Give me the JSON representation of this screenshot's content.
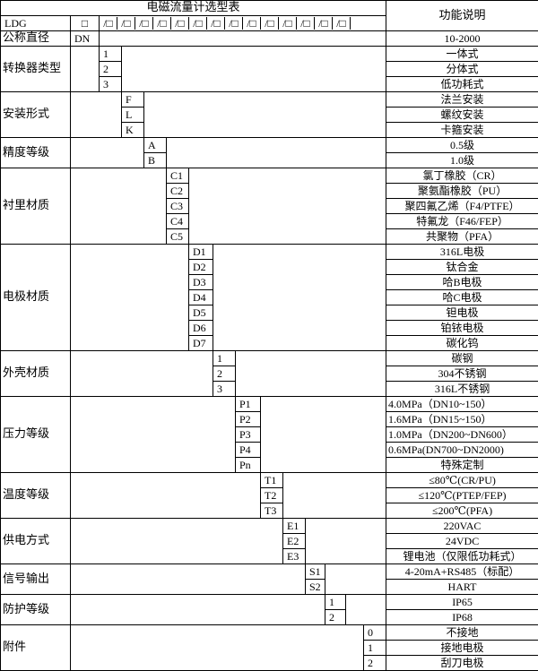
{
  "header": {
    "title": "电磁流量计选型表",
    "desc_title": "功能说明",
    "model": "LDG",
    "first_box": "□",
    "boxes": [
      "/□",
      "/□",
      "/□",
      "/□",
      "/□",
      "/□",
      "/□",
      "/□",
      "/□",
      "/□",
      "/□",
      "/□",
      "/□",
      "/□"
    ]
  },
  "nominal": {
    "label": "公称直径",
    "code": "DN",
    "desc": "10-2000"
  },
  "groups": [
    {
      "label": "转换器类型",
      "col": 2,
      "options": [
        {
          "code": "1",
          "desc": "一体式"
        },
        {
          "code": "2",
          "desc": "分体式"
        },
        {
          "code": "3",
          "desc": "低功耗式"
        }
      ]
    },
    {
      "label": "安装形式",
      "col": 3,
      "options": [
        {
          "code": "F",
          "desc": "法兰安装"
        },
        {
          "code": "L",
          "desc": "螺纹安装"
        },
        {
          "code": "K",
          "desc": "卡箍安装"
        }
      ]
    },
    {
      "label": "精度等级",
      "col": 4,
      "options": [
        {
          "code": "A",
          "desc": "0.5级"
        },
        {
          "code": "B",
          "desc": "1.0级"
        }
      ]
    },
    {
      "label": "衬里材质",
      "col": 5,
      "options": [
        {
          "code": "C1",
          "desc": "氯丁橡胶（CR）"
        },
        {
          "code": "C2",
          "desc": "聚氨酯橡胶（PU）"
        },
        {
          "code": "C3",
          "desc": "聚四氟乙烯（F4/PTFE）"
        },
        {
          "code": "C4",
          "desc": "特氟龙（F46/FEP）"
        },
        {
          "code": "C5",
          "desc": "共聚物（PFA）"
        }
      ]
    },
    {
      "label": "电极材质",
      "col": 6,
      "options": [
        {
          "code": "D1",
          "desc": "316L电极"
        },
        {
          "code": "D2",
          "desc": "钛合金"
        },
        {
          "code": "D3",
          "desc": "哈B电极"
        },
        {
          "code": "D4",
          "desc": "哈C电极"
        },
        {
          "code": "D5",
          "desc": "钽电极"
        },
        {
          "code": "D6",
          "desc": "铂铱电极"
        },
        {
          "code": "D7",
          "desc": "碳化钨"
        }
      ]
    },
    {
      "label": "外壳材质",
      "col": 7,
      "options": [
        {
          "code": "1",
          "desc": "碳钢"
        },
        {
          "code": "2",
          "desc": "304不锈钢"
        },
        {
          "code": "3",
          "desc": "316L不锈钢"
        }
      ]
    },
    {
      "label": "压力等级",
      "col": 8,
      "left": true,
      "options": [
        {
          "code": "P1",
          "desc": "4.0MPa（DN10~150）"
        },
        {
          "code": "P2",
          "desc": "1.6MPa（DN15~150）"
        },
        {
          "code": "P3",
          "desc": "1.0MPa（DN200~DN600）"
        },
        {
          "code": "P4",
          "desc": "0.6MPa(DN700~DN2000)"
        },
        {
          "code": "Pn",
          "desc": "特殊定制",
          "center": true
        }
      ]
    },
    {
      "label": "温度等级",
      "col": 9,
      "options": [
        {
          "code": "T1",
          "desc": "≤80℃(CR/PU)"
        },
        {
          "code": "T2",
          "desc": "≤120℃(PTEP/FEP)"
        },
        {
          "code": "T3",
          "desc": "≤200℃(PFA)"
        }
      ]
    },
    {
      "label": "供电方式",
      "col": 10,
      "options": [
        {
          "code": "E1",
          "desc": "220VAC"
        },
        {
          "code": "E2",
          "desc": "24VDC"
        },
        {
          "code": "E3",
          "desc": "锂电池（仅限低功耗式）"
        }
      ]
    },
    {
      "label": "信号输出",
      "col": 11,
      "options": [
        {
          "code": "S1",
          "desc": "4-20mA+RS485（标配）"
        },
        {
          "code": "S2",
          "desc": "HART"
        }
      ]
    },
    {
      "label": "防护等级",
      "col": 12,
      "options": [
        {
          "code": "1",
          "desc": "IP65"
        },
        {
          "code": "2",
          "desc": "IP68"
        }
      ]
    },
    {
      "label": "附件",
      "col": 14,
      "options": [
        {
          "code": "0",
          "desc": "不接地"
        },
        {
          "code": "1",
          "desc": "接地电极"
        },
        {
          "code": "2",
          "desc": "刮刀电极"
        }
      ]
    }
  ]
}
